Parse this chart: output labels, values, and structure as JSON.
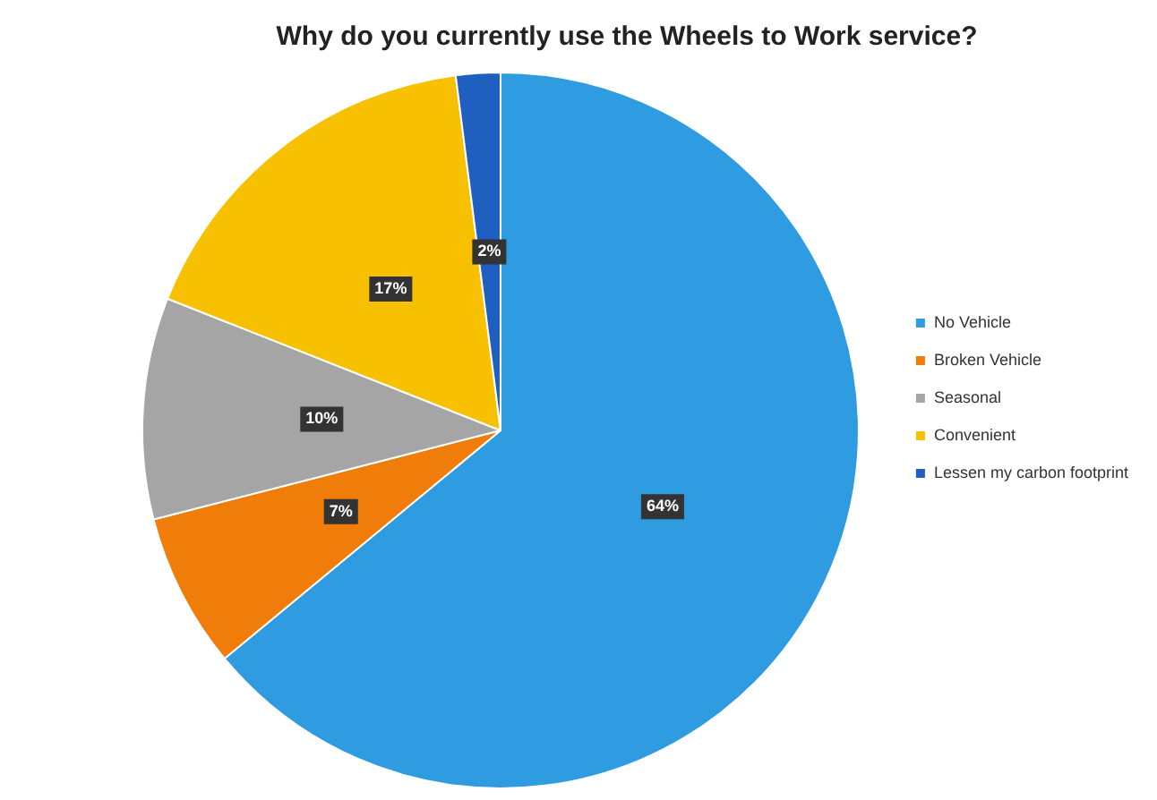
{
  "chart_data": {
    "type": "pie",
    "title": "Why do you currently use the Wheels to Work service?",
    "categories": [
      "No Vehicle",
      "Broken Vehicle",
      "Seasonal",
      "Convenient",
      "Lessen my carbon footprint"
    ],
    "values": [
      64,
      7,
      10,
      17,
      2
    ],
    "colors": [
      "#2f9be0",
      "#f07c0a",
      "#a5a5a5",
      "#f7c000",
      "#1f5fbf"
    ],
    "value_labels": [
      "64%",
      "7%",
      "10%",
      "17%",
      "2%"
    ],
    "legend": "right"
  }
}
